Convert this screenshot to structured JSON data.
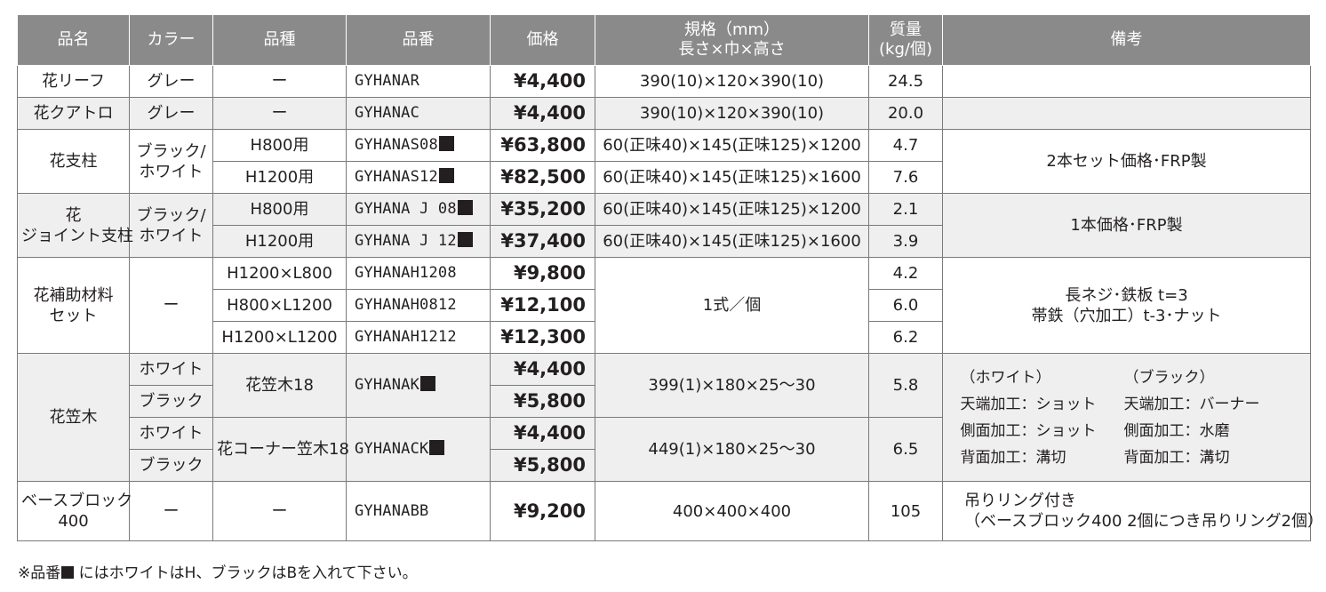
{
  "headers": {
    "name": "品名",
    "color": "カラー",
    "variety": "品種",
    "code": "品番",
    "price": "価格",
    "spec_line1": "規格（mm）",
    "spec_line2": "長さ×巾×高さ",
    "weight_line1": "質量",
    "weight_line2": "(kg/個)",
    "remarks": "備考"
  },
  "rows": {
    "hana_leaf": {
      "name": "花リーフ",
      "color": "グレー",
      "variety": "ー",
      "code": "GYHANAR",
      "price": "¥4,400",
      "spec": "390(10)×120×390(10)",
      "weight": "24.5"
    },
    "hana_quatro": {
      "name": "花クアトロ",
      "color": "グレー",
      "variety": "ー",
      "code": "GYHANAC",
      "price": "¥4,400",
      "spec": "390(10)×120×390(10)",
      "weight": "20.0"
    },
    "hana_pillar": {
      "name": "花支柱",
      "color_line1": "ブラック/",
      "color_line2": "ホワイト",
      "remarks": "2本セット価格･FRP製",
      "items": [
        {
          "variety": "H800用",
          "code": "GYHANAS08",
          "price": "¥63,800",
          "spec": "60(正味40)×145(正味125)×1200",
          "weight": "4.7"
        },
        {
          "variety": "H1200用",
          "code": "GYHANAS12",
          "price": "¥82,500",
          "spec": "60(正味40)×145(正味125)×1600",
          "weight": "7.6"
        }
      ]
    },
    "hana_joint": {
      "name_line1": "花",
      "name_line2": "ジョイント支柱",
      "color_line1": "ブラック/",
      "color_line2": "ホワイト",
      "remarks": "1本価格･FRP製",
      "items": [
        {
          "variety": "H800用",
          "code": "GYHANA J 08",
          "price": "¥35,200",
          "spec": "60(正味40)×145(正味125)×1200",
          "weight": "2.1"
        },
        {
          "variety": "H1200用",
          "code": "GYHANA J 12",
          "price": "¥37,400",
          "spec": "60(正味40)×145(正味125)×1600",
          "weight": "3.9"
        }
      ]
    },
    "hana_aux": {
      "name_line1": "花補助材料",
      "name_line2": "セット",
      "color": "ー",
      "spec": "1式／個",
      "remarks_line1": "長ネジ･鉄板 t=3",
      "remarks_line2": "帯鉄（穴加工）t-3･ナット",
      "items": [
        {
          "variety": "H1200×L800",
          "code": "GYHANAH1208",
          "price": "¥9,800",
          "weight": "4.2"
        },
        {
          "variety": "H800×L1200",
          "code": "GYHANAH0812",
          "price": "¥12,100",
          "weight": "6.0"
        },
        {
          "variety": "H1200×L1200",
          "code": "GYHANAH1212",
          "price": "¥12,300",
          "weight": "6.2"
        }
      ]
    },
    "hana_kasagi": {
      "name": "花笠木",
      "groups": [
        {
          "variety": "花笠木18",
          "code": "GYHANAK",
          "spec": "399(1)×180×25～30",
          "weight": "5.8",
          "items": [
            {
              "color": "ホワイト",
              "price": "¥4,400"
            },
            {
              "color": "ブラック",
              "price": "¥5,800"
            }
          ]
        },
        {
          "variety": "花コーナー笠木18",
          "code": "GYHANACK",
          "spec": "449(1)×180×25～30",
          "weight": "6.5",
          "items": [
            {
              "color": "ホワイト",
              "price": "¥4,400"
            },
            {
              "color": "ブラック",
              "price": "¥5,800"
            }
          ]
        }
      ],
      "remarks": {
        "white_title": "（ホワイト）",
        "black_title": "（ブラック）",
        "white_1": "天端加工：ショット",
        "black_1": "天端加工：バーナー",
        "white_2": "側面加工：ショット",
        "black_2": "側面加工：水磨",
        "white_3": "背面加工：溝切",
        "black_3": "背面加工：溝切"
      }
    },
    "base_block": {
      "name_line1": "ベースブロック",
      "name_line2": "400",
      "color": "ー",
      "variety": "ー",
      "code": "GYHANABB",
      "price": "¥9,200",
      "spec": "400×400×400",
      "weight": "105",
      "remarks_line1": "吊りリング付き",
      "remarks_line2": "（ベースブロック400 2個につき吊りリング2個）"
    }
  },
  "footnote": {
    "prefix": "※品番",
    "suffix": "にはホワイトはH、ブラックはBを入れて下さい。"
  },
  "colors": {
    "header_bg": "#8a8a8a",
    "shaded_row": "#efefef",
    "border": "#7a7a7a"
  }
}
